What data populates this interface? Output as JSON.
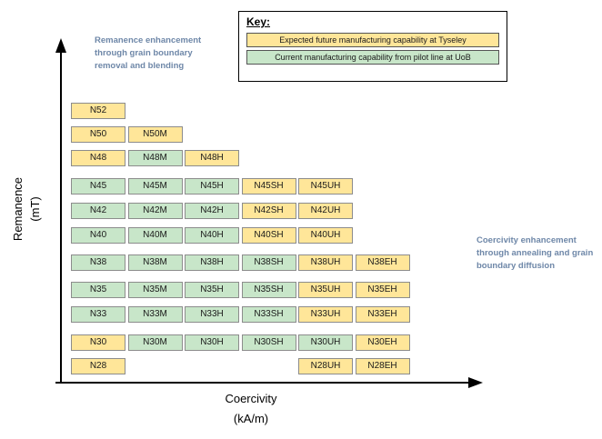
{
  "key": {
    "title": "Key:",
    "items": [
      {
        "id": "future",
        "label": "Expected future manufacturing capability at Tyseley"
      },
      {
        "id": "current",
        "label": "Current manufacturing capability from pilot line at UoB"
      }
    ]
  },
  "annotations": {
    "left": "Remanence enhancement through grain boundary removal and blending",
    "right": "Coercivity enhancement through annealing and grain boundary diffusion"
  },
  "axes": {
    "y_label": "Remanence",
    "y_unit": "(mT)",
    "x_label": "Coercivity",
    "x_unit": "(kA/m)"
  },
  "colors": {
    "future": "#FFE699",
    "current": "#C8E6C9",
    "cell_border": "#8c8c8c",
    "annotation": "#6E87A8"
  },
  "grid": {
    "rows": [
      {
        "cells": [
          {
            "label": "N52",
            "col": 0,
            "type": "future"
          }
        ]
      },
      {
        "cells": [
          {
            "label": "N50",
            "col": 0,
            "type": "future"
          },
          {
            "label": "N50M",
            "col": 1,
            "type": "future"
          }
        ]
      },
      {
        "cells": [
          {
            "label": "N48",
            "col": 0,
            "type": "future"
          },
          {
            "label": "N48M",
            "col": 1,
            "type": "current"
          },
          {
            "label": "N48H",
            "col": 2,
            "type": "future"
          }
        ]
      },
      {
        "cells": [
          {
            "label": "N45",
            "col": 0,
            "type": "current"
          },
          {
            "label": "N45M",
            "col": 1,
            "type": "current"
          },
          {
            "label": "N45H",
            "col": 2,
            "type": "current"
          },
          {
            "label": "N45SH",
            "col": 3,
            "type": "future"
          },
          {
            "label": "N45UH",
            "col": 4,
            "type": "future"
          }
        ]
      },
      {
        "cells": [
          {
            "label": "N42",
            "col": 0,
            "type": "current"
          },
          {
            "label": "N42M",
            "col": 1,
            "type": "current"
          },
          {
            "label": "N42H",
            "col": 2,
            "type": "current"
          },
          {
            "label": "N42SH",
            "col": 3,
            "type": "future"
          },
          {
            "label": "N42UH",
            "col": 4,
            "type": "future"
          }
        ]
      },
      {
        "cells": [
          {
            "label": "N40",
            "col": 0,
            "type": "current"
          },
          {
            "label": "N40M",
            "col": 1,
            "type": "current"
          },
          {
            "label": "N40H",
            "col": 2,
            "type": "current"
          },
          {
            "label": "N40SH",
            "col": 3,
            "type": "future"
          },
          {
            "label": "N40UH",
            "col": 4,
            "type": "future"
          }
        ]
      },
      {
        "cells": [
          {
            "label": "N38",
            "col": 0,
            "type": "current"
          },
          {
            "label": "N38M",
            "col": 1,
            "type": "current"
          },
          {
            "label": "N38H",
            "col": 2,
            "type": "current"
          },
          {
            "label": "N38SH",
            "col": 3,
            "type": "current"
          },
          {
            "label": "N38UH",
            "col": 4,
            "type": "future"
          },
          {
            "label": "N38EH",
            "col": 5,
            "type": "future"
          }
        ]
      },
      {
        "cells": [
          {
            "label": "N35",
            "col": 0,
            "type": "current"
          },
          {
            "label": "N35M",
            "col": 1,
            "type": "current"
          },
          {
            "label": "N35H",
            "col": 2,
            "type": "current"
          },
          {
            "label": "N35SH",
            "col": 3,
            "type": "current"
          },
          {
            "label": "N35UH",
            "col": 4,
            "type": "future"
          },
          {
            "label": "N35EH",
            "col": 5,
            "type": "future"
          }
        ]
      },
      {
        "cells": [
          {
            "label": "N33",
            "col": 0,
            "type": "current"
          },
          {
            "label": "N33M",
            "col": 1,
            "type": "current"
          },
          {
            "label": "N33H",
            "col": 2,
            "type": "current"
          },
          {
            "label": "N33SH",
            "col": 3,
            "type": "current"
          },
          {
            "label": "N33UH",
            "col": 4,
            "type": "future"
          },
          {
            "label": "N33EH",
            "col": 5,
            "type": "future"
          }
        ]
      },
      {
        "cells": [
          {
            "label": "N30",
            "col": 0,
            "type": "future"
          },
          {
            "label": "N30M",
            "col": 1,
            "type": "current"
          },
          {
            "label": "N30H",
            "col": 2,
            "type": "current"
          },
          {
            "label": "N30SH",
            "col": 3,
            "type": "current"
          },
          {
            "label": "N30UH",
            "col": 4,
            "type": "current"
          },
          {
            "label": "N30EH",
            "col": 5,
            "type": "future"
          }
        ]
      },
      {
        "cells": [
          {
            "label": "N28",
            "col": 0,
            "type": "future"
          },
          {
            "label": "N28UH",
            "col": 4,
            "type": "future"
          },
          {
            "label": "N28EH",
            "col": 5,
            "type": "future"
          }
        ]
      }
    ]
  }
}
